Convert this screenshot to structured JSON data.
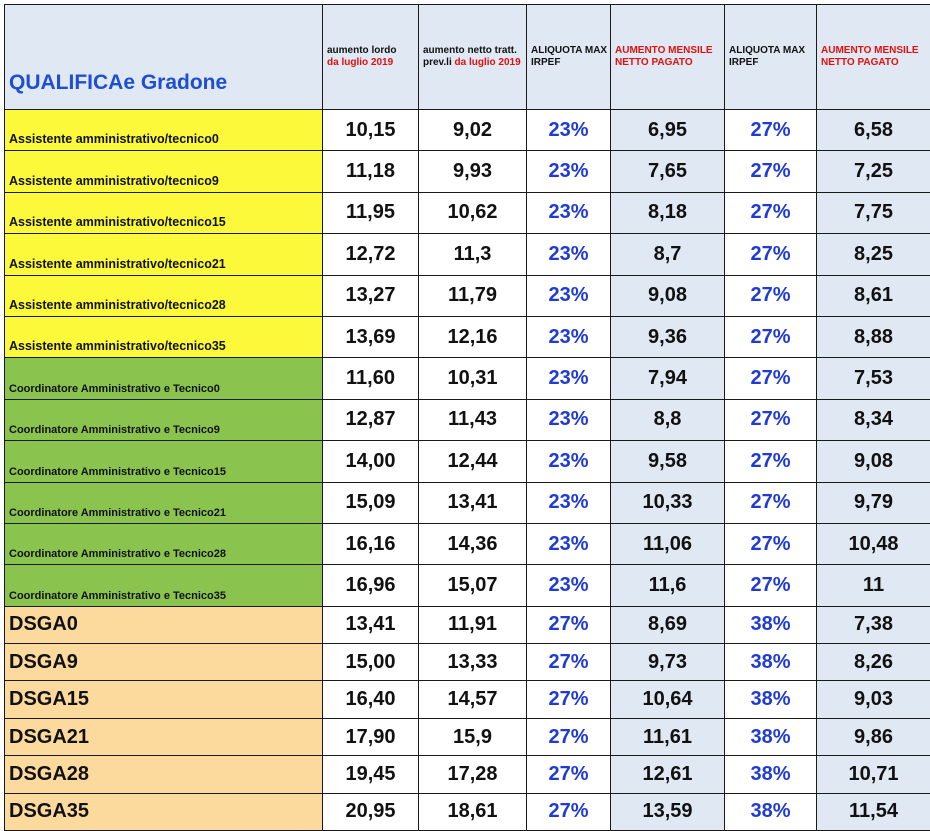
{
  "header": {
    "qualifica": "QUALIFICAe Gradone",
    "col_lordo": "aumento lordo",
    "col_lordo_date": "da luglio 2019",
    "col_netto": "aumento netto tratt. prev.li",
    "col_netto_date": "da luglio 2019",
    "col_aliquota1": "ALIQUOTA MAX IRPEF",
    "col_aumento1": "AUMENTO MENSILE NETTO PAGATO",
    "col_aliquota2": "ALIQUOTA MAX IRPEF",
    "col_aumento2": "AUMENTO MENSILE NETTO PAGATO"
  },
  "rows": [
    {
      "name": "Assistente amministrativo/tecnico0",
      "lordo": "10,15",
      "netto": "9,02",
      "aliq1": "23%",
      "aum1": "6,95",
      "aliq2": "27%",
      "aum2": "6,58"
    },
    {
      "name": "Assistente amministrativo/tecnico9",
      "lordo": "11,18",
      "netto": "9,93",
      "aliq1": "23%",
      "aum1": "7,65",
      "aliq2": "27%",
      "aum2": "7,25"
    },
    {
      "name": "Assistente amministrativo/tecnico15",
      "lordo": "11,95",
      "netto": "10,62",
      "aliq1": "23%",
      "aum1": "8,18",
      "aliq2": "27%",
      "aum2": "7,75"
    },
    {
      "name": "Assistente amministrativo/tecnico21",
      "lordo": "12,72",
      "netto": "11,3",
      "aliq1": "23%",
      "aum1": "8,7",
      "aliq2": "27%",
      "aum2": "8,25"
    },
    {
      "name": "Assistente amministrativo/tecnico28",
      "lordo": "13,27",
      "netto": "11,79",
      "aliq1": "23%",
      "aum1": "9,08",
      "aliq2": "27%",
      "aum2": "8,61"
    },
    {
      "name": "Assistente amministrativo/tecnico35",
      "lordo": "13,69",
      "netto": "12,16",
      "aliq1": "23%",
      "aum1": "9,36",
      "aliq2": "27%",
      "aum2": "8,88"
    },
    {
      "name": "Coordinatore Amministrativo e  Tecnico0",
      "lordo": "11,60",
      "netto": "10,31",
      "aliq1": "23%",
      "aum1": "7,94",
      "aliq2": "27%",
      "aum2": "7,53"
    },
    {
      "name": "Coordinatore Amministrativo e  Tecnico9",
      "lordo": "12,87",
      "netto": "11,43",
      "aliq1": "23%",
      "aum1": "8,8",
      "aliq2": "27%",
      "aum2": "8,34"
    },
    {
      "name": "Coordinatore Amministrativo e  Tecnico15",
      "lordo": "14,00",
      "netto": "12,44",
      "aliq1": "23%",
      "aum1": "9,58",
      "aliq2": "27%",
      "aum2": "9,08"
    },
    {
      "name": "Coordinatore Amministrativo e  Tecnico21",
      "lordo": "15,09",
      "netto": "13,41",
      "aliq1": "23%",
      "aum1": "10,33",
      "aliq2": "27%",
      "aum2": "9,79"
    },
    {
      "name": "Coordinatore Amministrativo e  Tecnico28",
      "lordo": "16,16",
      "netto": "14,36",
      "aliq1": "23%",
      "aum1": "11,06",
      "aliq2": "27%",
      "aum2": "10,48"
    },
    {
      "name": "Coordinatore Amministrativo e  Tecnico35",
      "lordo": "16,96",
      "netto": "15,07",
      "aliq1": "23%",
      "aum1": "11,6",
      "aliq2": "27%",
      "aum2": "11"
    },
    {
      "name": "DSGA0",
      "lordo": "13,41",
      "netto": "11,91",
      "aliq1": "27%",
      "aum1": "8,69",
      "aliq2": "38%",
      "aum2": "7,38"
    },
    {
      "name": "DSGA9",
      "lordo": "15,00",
      "netto": "13,33",
      "aliq1": "27%",
      "aum1": "9,73",
      "aliq2": "38%",
      "aum2": "8,26"
    },
    {
      "name": "DSGA15",
      "lordo": "16,40",
      "netto": "14,57",
      "aliq1": "27%",
      "aum1": "10,64",
      "aliq2": "38%",
      "aum2": "9,03"
    },
    {
      "name": "DSGA21",
      "lordo": "17,90",
      "netto": "15,9",
      "aliq1": "27%",
      "aum1": "11,61",
      "aliq2": "38%",
      "aum2": "9,86"
    },
    {
      "name": "DSGA28",
      "lordo": "19,45",
      "netto": "17,28",
      "aliq1": "27%",
      "aum1": "12,61",
      "aliq2": "38%",
      "aum2": "10,71"
    },
    {
      "name": "DSGA35",
      "lordo": "20,95",
      "netto": "18,61",
      "aliq1": "27%",
      "aum1": "13,59",
      "aliq2": "38%",
      "aum2": "11,54"
    }
  ]
}
